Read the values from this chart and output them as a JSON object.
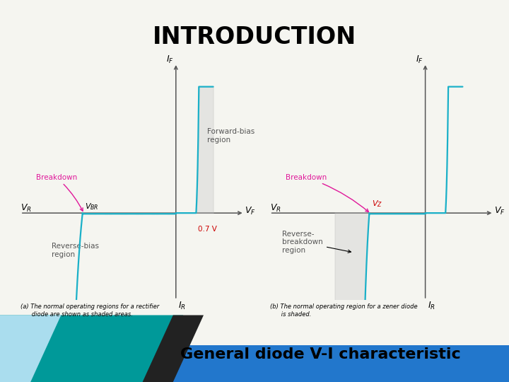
{
  "title": "INTRODUCTION",
  "title_bg": "#90EE90",
  "title_fontsize": 24,
  "subtitle": "General diode V-I characteristic",
  "subtitle_bg": "#90EE90",
  "subtitle_fontsize": 16,
  "bg_color": "#f5f5f0",
  "curve_color": "#1ab0c8",
  "magenta": "#e0189a",
  "shade_color": "#bbbbbb",
  "axis_color": "#555555",
  "caption_a": "(a) The normal operating regions for a rectifier\n      diode are shown as shaded areas.",
  "caption_b": "(b) The normal operating region for a zener diode\n      is shaded.",
  "teal_color": "#009999",
  "dark_color": "#222222",
  "blue_color": "#2277cc"
}
